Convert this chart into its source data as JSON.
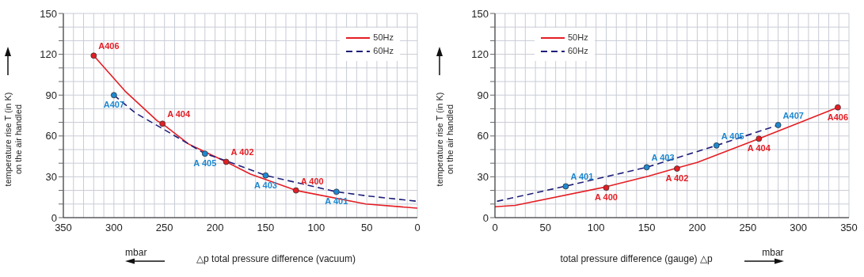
{
  "chart_data": [
    {
      "type": "line",
      "xlabel": "△p total pressure difference (vacuum)",
      "ylabel": "temperature rise T (in K)\non the air handled",
      "xlim": [
        350,
        0
      ],
      "xticks": [
        0,
        {
          "value": 10,
          "label": null
        },
        {
          "value": 20,
          "label": null
        },
        {
          "value": 30,
          "label": null
        },
        {
          "value": 40,
          "label": null
        },
        50,
        {
          "value": 60,
          "label": null
        },
        {
          "value": 70,
          "label": null
        },
        {
          "value": 80,
          "label": null
        },
        {
          "value": 90,
          "label": null
        },
        100,
        {
          "value": 110,
          "label": null
        },
        {
          "value": 120,
          "label": null
        },
        {
          "value": 130,
          "label": null
        },
        {
          "value": 140,
          "label": null
        },
        150,
        {
          "value": 160,
          "label": null
        },
        {
          "value": 170,
          "label": null
        },
        {
          "value": 180,
          "label": null
        },
        {
          "value": 190,
          "label": null
        },
        200,
        {
          "value": 210,
          "label": null
        },
        {
          "value": 220,
          "label": null
        },
        {
          "value": 230,
          "label": null
        },
        {
          "value": 240,
          "label": null
        },
        250,
        {
          "value": 260,
          "label": null
        },
        {
          "value": 270,
          "label": null
        },
        {
          "value": 280,
          "label": null
        },
        {
          "value": 290,
          "label": null
        },
        300,
        {
          "value": 310,
          "label": null
        },
        {
          "value": 320,
          "label": null
        },
        {
          "value": 330,
          "label": null
        },
        {
          "value": 340,
          "label": null
        },
        350
      ],
      "ylim": [
        0,
        150
      ],
      "yticks": [
        0,
        {
          "value": 10,
          "label": null
        },
        {
          "value": 20,
          "label": null
        },
        30,
        {
          "value": 40,
          "label": null
        },
        {
          "value": 50,
          "label": null
        },
        60,
        {
          "value": 70,
          "label": null
        },
        {
          "value": 80,
          "label": null
        },
        90,
        {
          "value": 100,
          "label": null
        },
        {
          "value": 110,
          "label": null
        },
        120,
        {
          "value": 130,
          "label": null
        },
        {
          "value": 140,
          "label": null
        },
        150
      ],
      "grid": true,
      "legend": "top right",
      "annotations": [
        "mbar"
      ],
      "series": [
        {
          "name": "50Hz",
          "color": "#e31e24",
          "line_style": "solid",
          "x": [
            320,
            289,
            257,
            252,
            226,
            189,
            165,
            120,
            51,
            0
          ],
          "values": [
            119,
            93,
            71,
            69,
            54,
            41,
            32,
            20,
            10,
            7
          ]
        },
        {
          "name": "60Hz",
          "color": "#1f1f7a",
          "line_style": "dashed",
          "x": [
            300,
            279,
            251,
            210,
            190,
            150,
            80,
            50,
            0
          ],
          "values": [
            90,
            77,
            65,
            47,
            42,
            31,
            19,
            16,
            12
          ]
        },
        {
          "type": "scatter",
          "marker": "circle",
          "color": "#e31e24",
          "x": [
            320,
            252,
            189,
            120
          ],
          "values": [
            119,
            69,
            41,
            20
          ],
          "value_labels": [
            "A406",
            "A 404",
            "A 402",
            "A 400"
          ]
        },
        {
          "type": "scatter",
          "marker": "circle",
          "color": "#1e88d0",
          "x": [
            300,
            210,
            150,
            80
          ],
          "values": [
            90,
            47,
            31,
            19
          ],
          "value_labels": [
            "A407",
            "A 405",
            "A 403",
            "A 401"
          ]
        }
      ]
    },
    {
      "type": "line",
      "xlabel": "total pressure difference (gauge) △p",
      "ylabel": "temperature rise T (in K)\non the air handled",
      "xlim": [
        0,
        350
      ],
      "xticks": [
        0,
        {
          "value": 10,
          "label": null
        },
        {
          "value": 20,
          "label": null
        },
        {
          "value": 30,
          "label": null
        },
        {
          "value": 40,
          "label": null
        },
        50,
        {
          "value": 60,
          "label": null
        },
        {
          "value": 70,
          "label": null
        },
        {
          "value": 80,
          "label": null
        },
        {
          "value": 90,
          "label": null
        },
        100,
        {
          "value": 110,
          "label": null
        },
        {
          "value": 120,
          "label": null
        },
        {
          "value": 130,
          "label": null
        },
        {
          "value": 140,
          "label": null
        },
        150,
        {
          "value": 160,
          "label": null
        },
        {
          "value": 170,
          "label": null
        },
        {
          "value": 180,
          "label": null
        },
        {
          "value": 190,
          "label": null
        },
        200,
        {
          "value": 210,
          "label": null
        },
        {
          "value": 220,
          "label": null
        },
        {
          "value": 230,
          "label": null
        },
        {
          "value": 240,
          "label": null
        },
        250,
        {
          "value": 260,
          "label": null
        },
        {
          "value": 270,
          "label": null
        },
        {
          "value": 280,
          "label": null
        },
        {
          "value": 290,
          "label": null
        },
        300,
        {
          "value": 310,
          "label": null
        },
        {
          "value": 320,
          "label": null
        },
        {
          "value": 330,
          "label": null
        },
        {
          "value": 340,
          "label": null
        },
        350
      ],
      "ylim": [
        0,
        150
      ],
      "yticks": [
        0,
        {
          "value": 10,
          "label": null
        },
        {
          "value": 20,
          "label": null
        },
        30,
        {
          "value": 40,
          "label": null
        },
        {
          "value": 50,
          "label": null
        },
        60,
        {
          "value": 70,
          "label": null
        },
        {
          "value": 80,
          "label": null
        },
        90,
        {
          "value": 100,
          "label": null
        },
        {
          "value": 110,
          "label": null
        },
        120,
        {
          "value": 130,
          "label": null
        },
        {
          "value": 140,
          "label": null
        },
        150
      ],
      "grid": true,
      "legend": "top left",
      "annotations": [
        "mbar"
      ],
      "series": [
        {
          "name": "50Hz",
          "color": "#e31e24",
          "line_style": "solid",
          "x": [
            0,
            20,
            109,
            152,
            180,
            200,
            261,
            339
          ],
          "values": [
            8,
            9,
            22.5,
            30.5,
            36.5,
            40.5,
            58,
            81
          ]
        },
        {
          "name": "60Hz",
          "color": "#1f1f7a",
          "line_style": "dashed",
          "x": [
            2,
            69,
            150,
            219,
            280
          ],
          "values": [
            12,
            23,
            37,
            53,
            68
          ]
        },
        {
          "type": "scatter",
          "marker": "circle",
          "color": "#e31e24",
          "x": [
            110,
            180,
            261,
            339
          ],
          "values": [
            22,
            36,
            58,
            81
          ],
          "value_labels": [
            "A 400",
            "A 402",
            "A 404",
            "A406"
          ]
        },
        {
          "type": "scatter",
          "marker": "circle",
          "color": "#1e88d0",
          "x": [
            70,
            150,
            219,
            280
          ],
          "values": [
            23,
            37,
            53,
            68
          ],
          "value_labels": [
            "A 401",
            "A 403",
            "A 405",
            "A407"
          ]
        }
      ]
    }
  ]
}
